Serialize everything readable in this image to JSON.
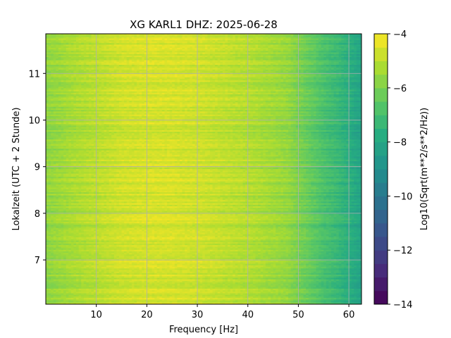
{
  "chart_data": {
    "type": "heatmap",
    "title": "XG KARL1  DHZ: 2025-06-28",
    "xlabel": "Frequency [Hz]",
    "ylabel": "Lokalzeit (UTC + 2 Stunde)",
    "colorbar_label": "Log10(Sqrt(m**2/s**2/Hz))",
    "xlim": [
      0,
      62.5
    ],
    "ylim": [
      11.85,
      6.05
    ],
    "x_ticks": [
      "10",
      "20",
      "30",
      "40",
      "50",
      "60"
    ],
    "y_ticks": [
      "7",
      "8",
      "9",
      "10",
      "11"
    ],
    "colorbar_range": [
      -14,
      -4
    ],
    "colorbar_ticks": [
      "−4",
      "−6",
      "−8",
      "−10",
      "−12",
      "−14"
    ],
    "colormap": "viridis",
    "grid": true,
    "spectral_profile": {
      "frequency_hz": [
        0,
        5,
        10,
        15,
        20,
        25,
        30,
        35,
        40,
        45,
        48,
        50,
        53,
        55,
        58,
        60,
        62.5
      ],
      "log_amplitude": [
        -5.7,
        -5.3,
        -5.0,
        -4.7,
        -4.6,
        -4.6,
        -4.7,
        -4.9,
        -5.1,
        -5.4,
        -5.6,
        -6.0,
        -6.5,
        -6.9,
        -7.3,
        -7.7,
        -8.2
      ]
    }
  }
}
